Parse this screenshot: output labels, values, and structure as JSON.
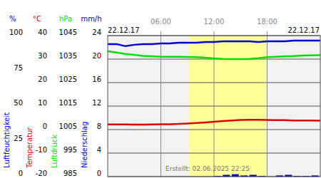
{
  "chart_data": [
    {
      "type": "line",
      "ylabel": "Luftfeuchtigkeit",
      "yunit": "%",
      "color": "#0000cc",
      "date_start": "22.12.17",
      "date_end": "22.12.17",
      "annotation": "Erstellt: 02.06.2025 22:25",
      "daylight": [
        9.2,
        17.9
      ],
      "xlim": [
        0,
        24
      ],
      "xticks": [
        {
          "value": 6,
          "label": "06:00"
        },
        {
          "value": 12,
          "label": "12:00"
        },
        {
          "value": 18,
          "label": "18:00"
        }
      ],
      "ylim": [
        0,
        100
      ],
      "yticks": [
        0,
        25,
        50,
        75,
        100
      ],
      "x": [
        0,
        1,
        2,
        3,
        4,
        5,
        6,
        7,
        8,
        9,
        10,
        11,
        12,
        13,
        14,
        15,
        16,
        17,
        18,
        19,
        20,
        21,
        22,
        23,
        24
      ],
      "values": [
        94,
        94,
        92.5,
        93.5,
        94,
        94,
        94.5,
        94.5,
        95,
        95,
        95,
        95.5,
        95.5,
        96,
        96,
        96,
        96,
        95.5,
        96,
        96,
        96,
        96.5,
        96.5,
        96.5,
        96.5
      ]
    },
    {
      "type": "line",
      "ylabel": "Temperatur",
      "yunit": "°C",
      "color": "#dd0000",
      "ylim": [
        -20,
        40
      ],
      "yticks": [
        -20,
        -10,
        0,
        10,
        20,
        30,
        40
      ],
      "x": [
        0,
        1,
        2,
        3,
        4,
        5,
        6,
        7,
        8,
        9,
        10,
        11,
        12,
        13,
        14,
        15,
        16,
        17,
        18,
        19,
        20,
        21,
        22,
        23,
        24
      ],
      "values": [
        2.2,
        2.2,
        2.2,
        2.1,
        2.1,
        2.2,
        2.3,
        2.3,
        2.4,
        2.6,
        2.8,
        3.0,
        3.3,
        3.6,
        3.9,
        4.1,
        4.2,
        4.2,
        4.1,
        4.0,
        4.0,
        3.9,
        3.9,
        3.9,
        3.8
      ]
    },
    {
      "type": "line",
      "ylabel": "Luftdruck",
      "yunit": "hPa",
      "color": "#00dd00",
      "ylim": [
        985,
        1045
      ],
      "yticks": [
        985,
        995,
        1005,
        1015,
        1025,
        1035,
        1045
      ],
      "x": [
        0,
        1,
        2,
        3,
        4,
        5,
        6,
        7,
        8,
        9,
        10,
        11,
        12,
        13,
        14,
        15,
        16,
        17,
        18,
        19,
        20,
        21,
        22,
        23,
        24
      ],
      "values": [
        1038.3,
        1037.8,
        1037.2,
        1036.8,
        1036.4,
        1036.2,
        1036,
        1036,
        1036,
        1035.9,
        1035.8,
        1035.6,
        1035.3,
        1035.1,
        1035,
        1035,
        1035.1,
        1035.4,
        1035.8,
        1036,
        1036.2,
        1036.3,
        1036.5,
        1036.6,
        1036.7
      ]
    },
    {
      "type": "bar",
      "ylabel": "Niederschlag",
      "yunit": "mm/h",
      "color": "#0000cc",
      "grid": true,
      "ylim": [
        0,
        24
      ],
      "yticks": [
        0,
        4,
        8,
        12,
        16,
        20,
        24
      ],
      "x": [
        0,
        1,
        2,
        3,
        4,
        5,
        6,
        7,
        8,
        9,
        10,
        11,
        12,
        13,
        14,
        15,
        16,
        17,
        18,
        19,
        20,
        21,
        22,
        23
      ],
      "values": [
        0,
        0,
        0,
        0,
        0,
        0,
        0,
        0,
        0,
        0,
        0,
        0,
        0.1,
        0.3,
        0.4,
        0.2,
        0.3,
        0.1,
        0,
        0.2,
        0.3,
        0.1,
        0.1,
        0.2
      ]
    }
  ]
}
